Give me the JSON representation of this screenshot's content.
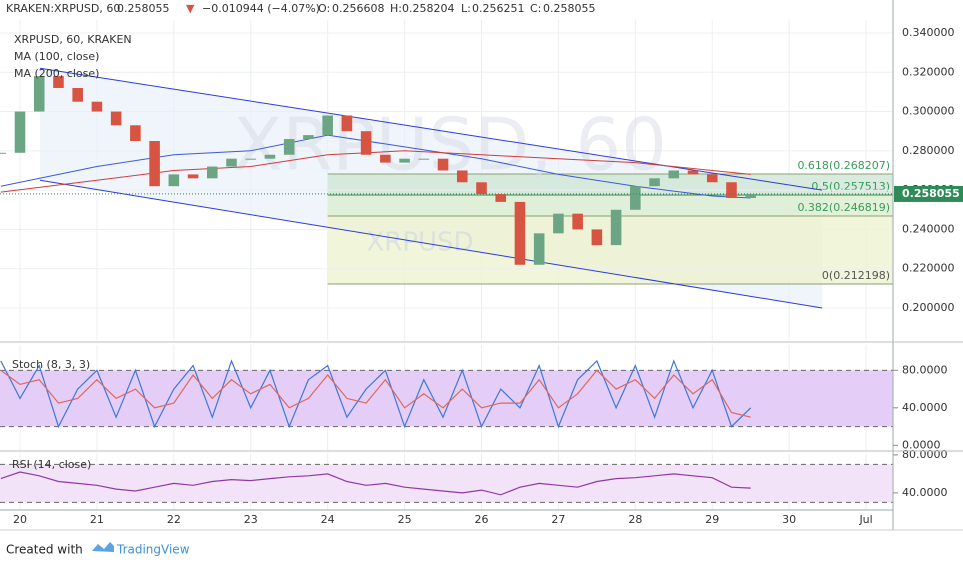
{
  "header": {
    "symbol": "KRAKEN:XRPUSD, 60",
    "last": "0.258055",
    "arrow": "▼",
    "change": "−0.010944 (−4.07%)",
    "o_label": "O:",
    "o": "0.256608",
    "h_label": "H:",
    "h": "0.258204",
    "l_label": "L:",
    "l": "0.256251",
    "c_label": "C:",
    "c": "0.258055"
  },
  "footer": {
    "created": "Created with",
    "brand": "TradingView"
  },
  "chart_data": [
    {
      "type": "candlestick",
      "title": "XRPUSD, 60, KRAKEN",
      "watermark": "XRPUSD, 60",
      "watermark_small": "XRPUSD",
      "x": [
        19.75,
        20,
        20.25,
        20.5,
        20.75,
        21,
        21.25,
        21.5,
        21.75,
        22,
        22.25,
        22.5,
        22.75,
        23,
        23.25,
        23.5,
        23.75,
        24,
        24.25,
        24.5,
        24.75,
        25,
        25.25,
        25.5,
        25.75,
        26,
        26.25,
        26.5,
        26.75,
        27,
        27.25,
        27.5,
        27.75,
        28,
        28.25,
        28.5,
        28.75,
        29,
        29.25,
        29.5
      ],
      "xlim": [
        19.74,
        31.35
      ],
      "xticks": [
        20,
        21,
        22,
        23,
        24,
        25,
        26,
        27,
        28,
        29,
        30,
        {
          "value": 31,
          "label": "Jul"
        }
      ],
      "ylim": [
        0.1837,
        0.3466
      ],
      "yticks": [
        {
          "value": 0.2,
          "label": "0.200000"
        },
        {
          "value": 0.22,
          "label": "0.220000"
        },
        {
          "value": 0.24,
          "label": "0.240000"
        },
        {
          "value": 0.26,
          "label": "0.260000"
        },
        {
          "value": 0.28,
          "label": "0.280000"
        },
        {
          "value": 0.3,
          "label": "0.300000"
        },
        {
          "value": 0.32,
          "label": "0.320000"
        },
        {
          "value": 0.34,
          "label": "0.340000"
        }
      ],
      "grid": true,
      "series": [
        {
          "name": "XRPUSD, 60, KRAKEN",
          "up_color": "#6ba583",
          "down_color": "#d75442",
          "values": [
            0.279,
            0.3,
            0.318,
            0.312,
            0.305,
            0.3,
            0.293,
            0.285,
            0.262,
            0.268,
            0.266,
            0.272,
            0.276,
            0.276,
            0.278,
            0.286,
            0.288,
            0.298,
            0.29,
            0.278,
            0.274,
            0.276,
            0.276,
            0.27,
            0.264,
            0.258,
            0.254,
            0.222,
            0.238,
            0.248,
            0.24,
            0.232,
            0.25,
            0.262,
            0.266,
            0.27,
            0.268,
            0.264,
            0.256,
            0.258
          ]
        },
        {
          "name": "MA (100, close)",
          "color": "#3c5ad8",
          "x": [
            19.75,
            21,
            22,
            23,
            24,
            25,
            26,
            27,
            28,
            29,
            29.5
          ],
          "values": [
            0.262,
            0.272,
            0.278,
            0.28,
            0.288,
            0.282,
            0.276,
            0.268,
            0.262,
            0.257,
            0.256
          ]
        },
        {
          "name": "MA (200, close)",
          "color": "#d03c3c",
          "x": [
            19.75,
            21,
            22,
            23,
            24,
            25,
            26,
            27,
            28,
            29,
            29.5
          ],
          "values": [
            0.259,
            0.265,
            0.27,
            0.272,
            0.278,
            0.28,
            0.278,
            0.276,
            0.274,
            0.27,
            0.268
          ]
        }
      ],
      "last_price": {
        "value": 0.258055,
        "label": "0.258055",
        "color": "#2e8b57"
      },
      "channel": {
        "color": "#2b3bd6",
        "upper": {
          "x": [
            20.26,
            30.43
          ],
          "y": [
            0.322,
            0.26
          ]
        },
        "lower": {
          "x": [
            20.26,
            30.43
          ],
          "y": [
            0.265,
            0.2
          ]
        }
      },
      "fib": {
        "x_start": 24,
        "levels": [
          {
            "value": 0.268207,
            "label": "0.618(0.268207)"
          },
          {
            "value": 0.257513,
            "label": "0.5(0.257513)"
          },
          {
            "value": 0.246819,
            "label": "0.382(0.246819)"
          },
          {
            "value": 0.212198,
            "label": "0(0.212198)"
          }
        ]
      }
    },
    {
      "type": "line",
      "title": "Stoch (8, 3, 3)",
      "x": [
        19.75,
        20,
        20.25,
        20.5,
        20.75,
        21,
        21.25,
        21.5,
        21.75,
        22,
        22.25,
        22.5,
        22.75,
        23,
        23.25,
        23.5,
        23.75,
        24,
        24.25,
        24.5,
        24.75,
        25,
        25.25,
        25.5,
        25.75,
        26,
        26.25,
        26.5,
        26.75,
        27,
        27.25,
        27.5,
        27.75,
        28,
        28.25,
        28.5,
        28.75,
        29,
        29.25,
        29.5
      ],
      "ylim": [
        -5,
        107
      ],
      "yticks": [
        {
          "value": 80,
          "label": "80.0000"
        },
        {
          "value": 40,
          "label": "40.0000"
        },
        {
          "value": 0,
          "label": "0.0000"
        }
      ],
      "bands": [
        20,
        80
      ],
      "band_color": "#e4cdf7",
      "series": [
        {
          "name": "%K",
          "color": "#3c78d8",
          "values": [
            90,
            50,
            85,
            20,
            60,
            80,
            30,
            80,
            20,
            60,
            85,
            30,
            90,
            40,
            80,
            20,
            70,
            85,
            30,
            60,
            80,
            20,
            70,
            30,
            80,
            20,
            60,
            40,
            85,
            20,
            70,
            90,
            40,
            85,
            30,
            90,
            40,
            80,
            20,
            40
          ]
        },
        {
          "name": "%D",
          "color": "#e0675a",
          "values": [
            80,
            65,
            70,
            45,
            50,
            70,
            50,
            60,
            40,
            45,
            75,
            50,
            70,
            55,
            65,
            40,
            50,
            75,
            50,
            45,
            70,
            40,
            55,
            40,
            60,
            40,
            45,
            45,
            70,
            40,
            55,
            80,
            60,
            70,
            50,
            75,
            55,
            70,
            35,
            30
          ]
        }
      ]
    },
    {
      "type": "line",
      "title": "RSI (14, close)",
      "x": [
        19.75,
        20,
        20.25,
        20.5,
        20.75,
        21,
        21.25,
        21.5,
        21.75,
        22,
        22.25,
        22.5,
        22.75,
        23,
        23.25,
        23.5,
        23.75,
        24,
        24.25,
        24.5,
        24.75,
        25,
        25.25,
        25.5,
        25.75,
        26,
        26.25,
        26.5,
        26.75,
        27,
        27.25,
        27.5,
        27.75,
        28,
        28.25,
        28.5,
        28.75,
        29,
        29.25,
        29.5
      ],
      "ylim": [
        22,
        82
      ],
      "yticks": [
        {
          "value": 80,
          "label": "80.0000"
        },
        {
          "value": 40,
          "label": "40.0000"
        }
      ],
      "bands": [
        30,
        70
      ],
      "band_color": "#f3e3f8",
      "series": [
        {
          "name": "RSI",
          "color": "#8e3aa3",
          "values": [
            55,
            62,
            58,
            52,
            50,
            48,
            44,
            42,
            46,
            50,
            48,
            52,
            54,
            53,
            55,
            57,
            58,
            60,
            52,
            48,
            50,
            46,
            44,
            42,
            40,
            43,
            38,
            46,
            50,
            48,
            46,
            52,
            55,
            56,
            58,
            60,
            58,
            56,
            46,
            45
          ]
        }
      ]
    }
  ]
}
